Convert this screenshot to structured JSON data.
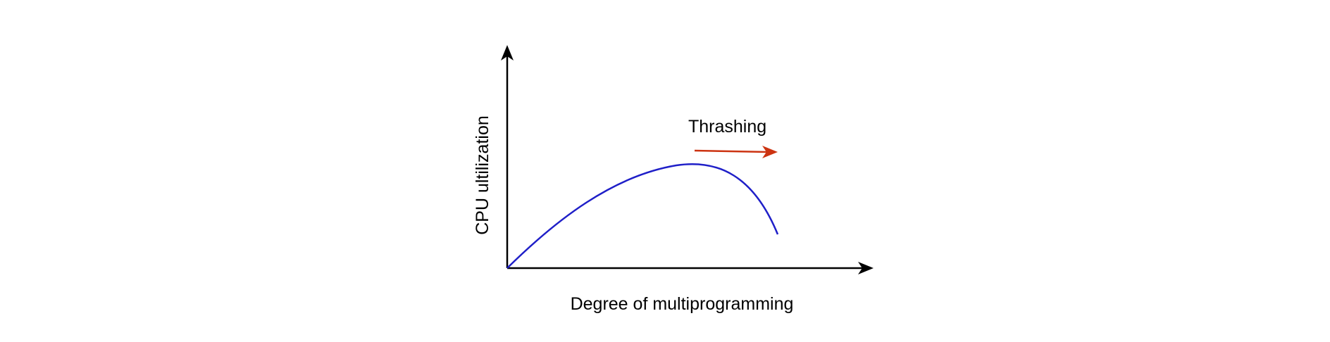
{
  "diagram": {
    "type": "line-sketch",
    "xlabel": "Degree of multiprogramming",
    "ylabel": "CPU ultilization",
    "annotation": "Thrashing",
    "colors": {
      "axes": "#000000",
      "curve": "#1f1fc8",
      "annotation_arrow": "#cc3311",
      "text": "#000000"
    },
    "curve_description": "rises from origin to a peak then falls sharply",
    "arrow_direction": "right"
  }
}
